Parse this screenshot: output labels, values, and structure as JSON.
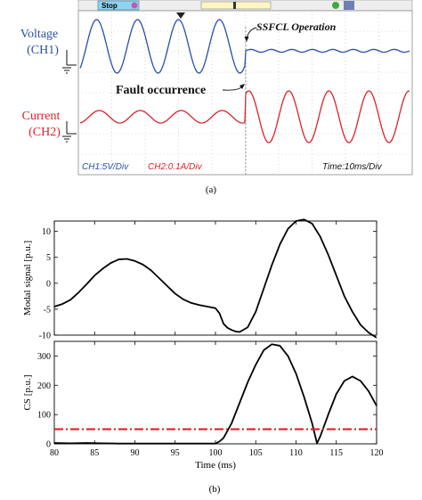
{
  "captions": {
    "a": "(a)",
    "b": "(b)"
  },
  "scope": {
    "toolbar_stop": "Stop",
    "voltage_label": "Voltage",
    "voltage_channel": "(CH1)",
    "current_label": "Current",
    "current_channel": "(CH2)",
    "ssfcl_annotation": "SSFCL Operation",
    "fault_annotation": "Fault occurrence",
    "ch1_scale": "CH1:5V/Div",
    "ch2_scale": "CH2:0.1A/Div",
    "time_scale": "Time:10ms/Div",
    "colors": {
      "voltage": "#2b4fa8",
      "current": "#d9232a",
      "grid": "#b9b9b9"
    }
  },
  "chart_data": [
    {
      "type": "line",
      "name": "modal-signal",
      "ylabel": "Modal signal [p.u.]",
      "xlabel": "",
      "xlim": [
        80,
        120
      ],
      "ylim": [
        -10,
        12
      ],
      "yticks": [
        -10,
        -5,
        0,
        5,
        10
      ],
      "xticks": [
        80,
        85,
        90,
        95,
        100,
        105,
        110,
        115,
        120
      ],
      "xtick_labels_shown": false,
      "series": [
        {
          "color": "#000000",
          "x": [
            80,
            81,
            82,
            83,
            84,
            85,
            86,
            87,
            88,
            89,
            90,
            91,
            92,
            93,
            94,
            95,
            96,
            97,
            98,
            99,
            100,
            100.5,
            101,
            101.5,
            102,
            102.5,
            103,
            104,
            105,
            106,
            107,
            108,
            109,
            110,
            111,
            112,
            113,
            114,
            115,
            116,
            117,
            118,
            119,
            120
          ],
          "y": [
            -4.5,
            -4.0,
            -3.2,
            -1.8,
            -0.2,
            1.5,
            2.8,
            3.9,
            4.6,
            4.7,
            4.3,
            3.6,
            2.5,
            1.0,
            -0.5,
            -2.0,
            -3.1,
            -3.8,
            -4.2,
            -4.5,
            -4.8,
            -5.8,
            -7.8,
            -8.6,
            -9.0,
            -9.3,
            -9.4,
            -8.5,
            -5.5,
            -1.0,
            3.5,
            7.5,
            10.5,
            12.0,
            12.3,
            11.5,
            9.0,
            5.5,
            1.5,
            -2.5,
            -5.5,
            -8.0,
            -9.5,
            -10.5
          ]
        }
      ]
    },
    {
      "type": "line",
      "name": "cs",
      "ylabel": "CS [p.u.]",
      "xlabel": "Time (ms)",
      "xlim": [
        80,
        120
      ],
      "ylim": [
        0,
        350
      ],
      "yticks": [
        0,
        100,
        200,
        300
      ],
      "xticks": [
        80,
        85,
        90,
        95,
        100,
        105,
        110,
        115,
        120
      ],
      "series": [
        {
          "color": "#000000",
          "style": "solid",
          "x": [
            80,
            82,
            84,
            86,
            88,
            90,
            92,
            94,
            96,
            98,
            100,
            100.5,
            101,
            102,
            103,
            104,
            105,
            106,
            107,
            108,
            109,
            110,
            111,
            112,
            112.6,
            113,
            114,
            115,
            116,
            117,
            118,
            119,
            120
          ],
          "y": [
            3,
            2,
            3,
            2,
            1,
            1,
            1,
            1,
            1,
            1,
            1,
            8,
            20,
            70,
            140,
            210,
            270,
            320,
            340,
            335,
            300,
            240,
            160,
            70,
            2,
            25,
            100,
            170,
            215,
            230,
            215,
            180,
            130
          ]
        },
        {
          "color": "#d9232a",
          "style": "dashdot",
          "x": [
            80,
            120
          ],
          "y": [
            50,
            50
          ]
        }
      ]
    }
  ]
}
